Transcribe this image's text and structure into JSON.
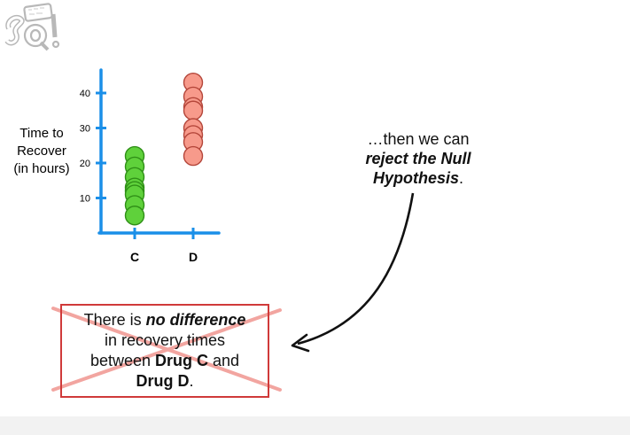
{
  "logo": {
    "lettering": "StatQuest BAM! SQ!",
    "colors": {
      "fill": "#ffffff",
      "stroke": "#b8b8b8"
    }
  },
  "colors": {
    "axis": "#1a8fe8",
    "drug_c": "#5fd13b",
    "drug_c_stroke": "#2f8f17",
    "drug_d": "#f79a8b",
    "drug_d_stroke": "#b4463a",
    "cross": "#f2a5a0",
    "box_border": "#d03a3a",
    "arrow": "#111111",
    "footer": "#f2f2f2"
  },
  "chart_data": {
    "type": "scatter",
    "categories": [
      "C",
      "D"
    ],
    "ylabel": [
      "Time to",
      "Recover",
      "(in hours)"
    ],
    "yticks": [
      "40",
      "30",
      "20",
      "10"
    ],
    "ylim": [
      0,
      45
    ],
    "grid": false,
    "series": [
      {
        "category": "C",
        "values": [
          5,
          8,
          11,
          12,
          13,
          16,
          19,
          22
        ]
      },
      {
        "category": "D",
        "values": [
          22,
          26,
          28,
          30,
          35,
          36,
          39,
          43
        ]
      }
    ]
  },
  "callout": {
    "line1": "…then we can",
    "line2": "reject the Null",
    "line3": "Hypothesis",
    "line3_end": "."
  },
  "null_hypothesis": {
    "line1_pre": "There is ",
    "line1_em": "no difference",
    "line2": "in recovery times",
    "line3_pre": "between ",
    "line3_b": "Drug C",
    "line3_post": " and",
    "line4_b": "Drug D",
    "line4_post": ".",
    "crossed_out": true
  }
}
